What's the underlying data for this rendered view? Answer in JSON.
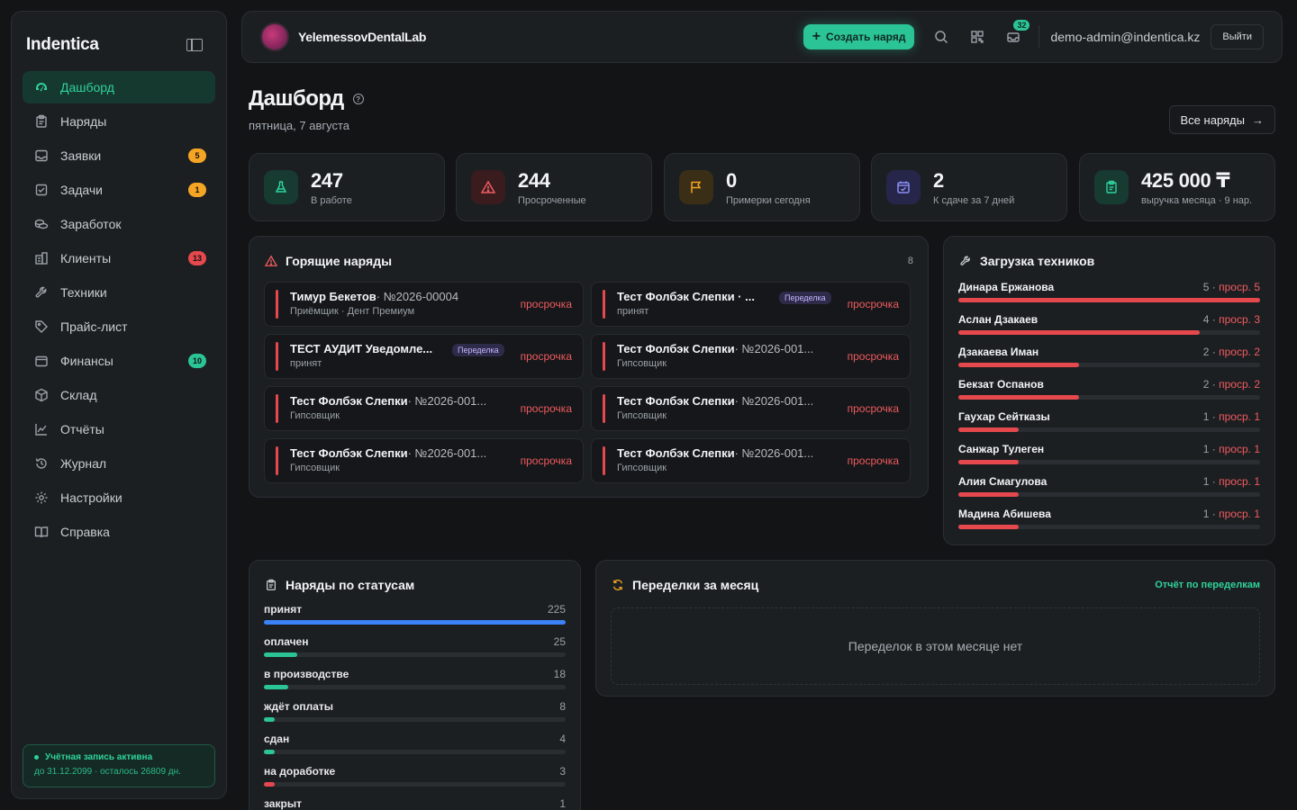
{
  "brand": "Indentica",
  "sidebar": {
    "items": [
      {
        "label": "Дашборд",
        "icon": "dashboard-icon",
        "active": true
      },
      {
        "label": "Наряды",
        "icon": "clipboard-icon"
      },
      {
        "label": "Заявки",
        "icon": "inbox-icon",
        "badge": "5",
        "badge_color": "#f5a524"
      },
      {
        "label": "Задачи",
        "icon": "checkbox-icon",
        "badge": "1",
        "badge_color": "#f5a524"
      },
      {
        "label": "Заработок",
        "icon": "money-icon"
      },
      {
        "label": "Клиенты",
        "icon": "building-icon",
        "badge": "13",
        "badge_color": "#e5484d"
      },
      {
        "label": "Техники",
        "icon": "wrench-icon"
      },
      {
        "label": "Прайс-лист",
        "icon": "tag-icon"
      },
      {
        "label": "Финансы",
        "icon": "wallet-icon",
        "badge": "10",
        "badge_color": "#2bc497"
      },
      {
        "label": "Склад",
        "icon": "box-icon"
      },
      {
        "label": "Отчёты",
        "icon": "chart-icon"
      },
      {
        "label": "Журнал",
        "icon": "history-icon"
      },
      {
        "label": "Настройки",
        "icon": "gear-icon"
      },
      {
        "label": "Справка",
        "icon": "book-icon"
      }
    ],
    "account_status": "Учётная запись активна",
    "account_until": "до 31.12.2099 · осталось 26809 дн."
  },
  "topbar": {
    "lab_name": "YelemessovDentalLab",
    "create_label": "Создать наряд",
    "notif_count": "32",
    "user_email": "demo-admin@indentica.kz",
    "logout_label": "Выйти"
  },
  "header": {
    "title": "Дашборд",
    "date": "пятница, 7 августа",
    "all_orders_label": "Все наряды"
  },
  "stats": [
    {
      "value": "247",
      "label": "В работе",
      "icon": "flask-icon",
      "color": "#2fd39a",
      "bg": "#173a31"
    },
    {
      "value": "244",
      "label": "Просроченные",
      "icon": "warning-icon",
      "color": "#ef5b5f",
      "bg": "#3a1c1f"
    },
    {
      "value": "0",
      "label": "Примерки сегодня",
      "icon": "flag-icon",
      "color": "#f5a524",
      "bg": "#3a2e16"
    },
    {
      "value": "2",
      "label": "К сдаче за 7 дней",
      "icon": "calendar-check-icon",
      "color": "#8b8df5",
      "bg": "#25264a"
    },
    {
      "value": "425 000 ₸",
      "label": "выручка месяца · 9 нар.",
      "icon": "clipboard-icon",
      "color": "#2fd39a",
      "bg": "#173a31"
    }
  ],
  "hot": {
    "title": "Горящие наряды",
    "count": "8",
    "items": [
      {
        "name": "Тимур Бекетов",
        "num": " · №2026-00004",
        "sub": "Приёмщик · Дент Премиум",
        "tag": "",
        "status": "просрочка"
      },
      {
        "name": "Тест Фолбэк Слепки · ...",
        "num": "",
        "sub": "принят",
        "tag": "Переделка",
        "status": "просрочка"
      },
      {
        "name": "ТЕСТ АУДИТ Уведомле...",
        "num": "",
        "sub": "принят",
        "tag": "Переделка",
        "status": "просрочка"
      },
      {
        "name": "Тест Фолбэк Слепки",
        "num": " · №2026-001...",
        "sub": "Гипсовщик",
        "tag": "",
        "status": "просрочка"
      },
      {
        "name": "Тест Фолбэк Слепки",
        "num": " · №2026-001...",
        "sub": "Гипсовщик",
        "tag": "",
        "status": "просрочка"
      },
      {
        "name": "Тест Фолбэк Слепки",
        "num": " · №2026-001...",
        "sub": "Гипсовщик",
        "tag": "",
        "status": "просрочка"
      },
      {
        "name": "Тест Фолбэк Слепки",
        "num": " · №2026-001...",
        "sub": "Гипсовщик",
        "tag": "",
        "status": "просрочка"
      },
      {
        "name": "Тест Фолбэк Слепки",
        "num": " · №2026-001...",
        "sub": "Гипсовщик",
        "tag": "",
        "status": "просрочка"
      }
    ]
  },
  "tech": {
    "title": "Загрузка техников",
    "rows": [
      {
        "name": "Динара Ержанова",
        "count": "5",
        "overdue": "проср. 5",
        "fill": 1.0
      },
      {
        "name": "Аслан Дзакаев",
        "count": "4",
        "overdue": "проср. 3",
        "fill": 0.8
      },
      {
        "name": "Дзакаева Иман",
        "count": "2",
        "overdue": "проср. 2",
        "fill": 0.4
      },
      {
        "name": "Бекзат Оспанов",
        "count": "2",
        "overdue": "проср. 2",
        "fill": 0.4
      },
      {
        "name": "Гаухар Сейтказы",
        "count": "1",
        "overdue": "проср. 1",
        "fill": 0.2
      },
      {
        "name": "Санжар Тулеген",
        "count": "1",
        "overdue": "проср. 1",
        "fill": 0.2
      },
      {
        "name": "Алия Смагулова",
        "count": "1",
        "overdue": "проср. 1",
        "fill": 0.2
      },
      {
        "name": "Мадина Абишева",
        "count": "1",
        "overdue": "проср. 1",
        "fill": 0.2
      }
    ]
  },
  "statuses": {
    "title": "Наряды по статусам",
    "rows": [
      {
        "name": "принят",
        "value": "225",
        "fill": 1.0,
        "color": "#3b82f6"
      },
      {
        "name": "оплачен",
        "value": "25",
        "fill": 0.11,
        "color": "#2bc497"
      },
      {
        "name": "в производстве",
        "value": "18",
        "fill": 0.08,
        "color": "#2bc497"
      },
      {
        "name": "ждёт оплаты",
        "value": "8",
        "fill": 0.036,
        "color": "#2bc497"
      },
      {
        "name": "сдан",
        "value": "4",
        "fill": 0.018,
        "color": "#2bc497"
      },
      {
        "name": "на доработке",
        "value": "3",
        "fill": 0.013,
        "color": "#e5484d"
      },
      {
        "name": "закрыт",
        "value": "1",
        "fill": 0.004,
        "color": "#2bc497"
      }
    ]
  },
  "remakes": {
    "title": "Переделки за месяц",
    "link": "Отчёт по переделкам",
    "empty": "Переделок в этом месяце нет"
  }
}
